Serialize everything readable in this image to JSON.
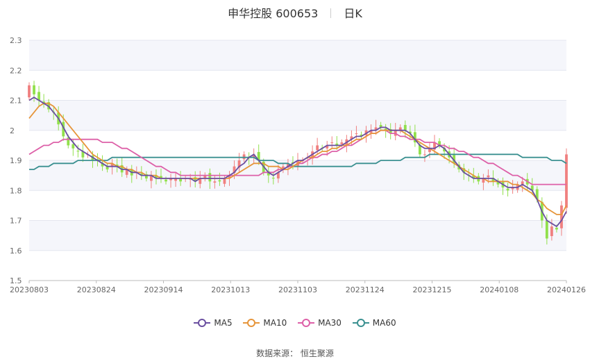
{
  "header": {
    "name": "申华控股 600653",
    "period": "日K"
  },
  "source_text": "数据来源： 恒生聚源",
  "colors": {
    "up": "#f08080",
    "down": "#91e04c",
    "ma5": "#6a4fa0",
    "ma10": "#e6953a",
    "ma30": "#dd60a8",
    "ma60": "#3a9090"
  },
  "chart_data": {
    "type": "candlestick",
    "ylim": [
      1.5,
      2.3
    ],
    "yticks": [
      "1.5",
      "1.6",
      "1.7",
      "1.8",
      "1.9",
      "2",
      "2.1",
      "2.2",
      "2.3"
    ],
    "xtick_labels": [
      "20230803",
      "20230824",
      "20230914",
      "20231013",
      "20231103",
      "20231124",
      "20231215",
      "20240108",
      "20240126"
    ],
    "legend": [
      "MA5",
      "MA10",
      "MA30",
      "MA60"
    ],
    "closes": [
      2.15,
      2.12,
      2.1,
      2.09,
      2.07,
      2.06,
      2.02,
      1.98,
      1.95,
      1.94,
      1.93,
      1.91,
      1.92,
      1.9,
      1.9,
      1.88,
      1.87,
      1.89,
      1.88,
      1.86,
      1.87,
      1.85,
      1.86,
      1.85,
      1.84,
      1.85,
      1.84,
      1.84,
      1.83,
      1.84,
      1.84,
      1.83,
      1.84,
      1.84,
      1.83,
      1.84,
      1.85,
      1.83,
      1.83,
      1.83,
      1.84,
      1.85,
      1.88,
      1.9,
      1.92,
      1.91,
      1.92,
      1.9,
      1.86,
      1.85,
      1.84,
      1.86,
      1.88,
      1.89,
      1.89,
      1.9,
      1.9,
      1.91,
      1.93,
      1.95,
      1.94,
      1.95,
      1.96,
      1.95,
      1.96,
      1.97,
      1.98,
      1.99,
      1.98,
      2.0,
      2.0,
      2.01,
      2.01,
      2.0,
      1.99,
      2.0,
      2.01,
      2.0,
      1.99,
      1.96,
      1.92,
      1.92,
      1.94,
      1.96,
      1.95,
      1.93,
      1.91,
      1.89,
      1.87,
      1.86,
      1.85,
      1.84,
      1.83,
      1.84,
      1.85,
      1.83,
      1.82,
      1.81,
      1.8,
      1.81,
      1.82,
      1.83,
      1.82,
      1.8,
      1.77,
      1.7,
      1.64,
      1.68,
      1.67,
      1.75,
      1.92
    ],
    "ma5": [
      2.1,
      2.11,
      2.1,
      2.09,
      2.08,
      2.06,
      2.04,
      2.01,
      1.98,
      1.96,
      1.94,
      1.93,
      1.92,
      1.91,
      1.9,
      1.89,
      1.88,
      1.88,
      1.88,
      1.87,
      1.87,
      1.86,
      1.86,
      1.85,
      1.85,
      1.85,
      1.84,
      1.84,
      1.84,
      1.84,
      1.84,
      1.84,
      1.84,
      1.84,
      1.83,
      1.84,
      1.84,
      1.84,
      1.84,
      1.84,
      1.84,
      1.85,
      1.86,
      1.88,
      1.89,
      1.91,
      1.92,
      1.9,
      1.88,
      1.86,
      1.85,
      1.86,
      1.87,
      1.88,
      1.89,
      1.9,
      1.9,
      1.91,
      1.92,
      1.93,
      1.94,
      1.95,
      1.95,
      1.95,
      1.95,
      1.96,
      1.97,
      1.98,
      1.98,
      1.99,
      2.0,
      2.0,
      2.01,
      2.01,
      2.0,
      2.0,
      2.0,
      2.0,
      1.99,
      1.97,
      1.95,
      1.94,
      1.94,
      1.94,
      1.95,
      1.94,
      1.92,
      1.9,
      1.88,
      1.86,
      1.85,
      1.84,
      1.84,
      1.84,
      1.84,
      1.84,
      1.83,
      1.82,
      1.81,
      1.81,
      1.81,
      1.82,
      1.81,
      1.8,
      1.77,
      1.73,
      1.7,
      1.69,
      1.68,
      1.7,
      1.73
    ],
    "ma10": [
      2.04,
      2.06,
      2.08,
      2.09,
      2.09,
      2.08,
      2.06,
      2.04,
      2.02,
      2.0,
      1.98,
      1.96,
      1.94,
      1.92,
      1.91,
      1.9,
      1.89,
      1.89,
      1.88,
      1.88,
      1.87,
      1.87,
      1.86,
      1.86,
      1.85,
      1.85,
      1.85,
      1.84,
      1.84,
      1.84,
      1.84,
      1.84,
      1.84,
      1.84,
      1.84,
      1.84,
      1.84,
      1.84,
      1.84,
      1.84,
      1.84,
      1.84,
      1.85,
      1.86,
      1.87,
      1.88,
      1.89,
      1.89,
      1.89,
      1.88,
      1.88,
      1.88,
      1.87,
      1.87,
      1.88,
      1.89,
      1.9,
      1.91,
      1.91,
      1.92,
      1.93,
      1.93,
      1.94,
      1.94,
      1.95,
      1.95,
      1.96,
      1.97,
      1.97,
      1.98,
      1.99,
      1.99,
      2.0,
      2.0,
      2.0,
      2.0,
      2.0,
      1.99,
      1.98,
      1.97,
      1.96,
      1.95,
      1.94,
      1.93,
      1.92,
      1.91,
      1.9,
      1.89,
      1.88,
      1.87,
      1.86,
      1.85,
      1.84,
      1.84,
      1.83,
      1.83,
      1.83,
      1.83,
      1.83,
      1.82,
      1.82,
      1.81,
      1.8,
      1.79,
      1.77,
      1.76,
      1.74,
      1.73,
      1.72,
      1.72,
      1.75
    ],
    "ma30": [
      1.92,
      1.93,
      1.94,
      1.95,
      1.95,
      1.96,
      1.96,
      1.97,
      1.97,
      1.97,
      1.97,
      1.97,
      1.97,
      1.97,
      1.97,
      1.96,
      1.96,
      1.96,
      1.95,
      1.94,
      1.94,
      1.93,
      1.92,
      1.91,
      1.9,
      1.89,
      1.88,
      1.88,
      1.87,
      1.86,
      1.86,
      1.85,
      1.85,
      1.85,
      1.85,
      1.85,
      1.85,
      1.85,
      1.85,
      1.85,
      1.85,
      1.85,
      1.85,
      1.85,
      1.85,
      1.85,
      1.85,
      1.85,
      1.86,
      1.86,
      1.86,
      1.87,
      1.87,
      1.88,
      1.88,
      1.89,
      1.89,
      1.9,
      1.91,
      1.91,
      1.92,
      1.92,
      1.93,
      1.93,
      1.94,
      1.95,
      1.95,
      1.96,
      1.97,
      1.98,
      1.99,
      1.99,
      2.0,
      2.0,
      1.99,
      1.99,
      1.98,
      1.98,
      1.97,
      1.97,
      1.97,
      1.96,
      1.96,
      1.96,
      1.95,
      1.95,
      1.94,
      1.94,
      1.93,
      1.93,
      1.92,
      1.91,
      1.91,
      1.9,
      1.89,
      1.89,
      1.88,
      1.87,
      1.86,
      1.85,
      1.85,
      1.84,
      1.83,
      1.82,
      1.82,
      1.82,
      1.82,
      1.82,
      1.82,
      1.82,
      1.82
    ],
    "ma60": [
      1.87,
      1.87,
      1.88,
      1.88,
      1.88,
      1.89,
      1.89,
      1.89,
      1.89,
      1.89,
      1.9,
      1.9,
      1.9,
      1.9,
      1.9,
      1.9,
      1.9,
      1.91,
      1.91,
      1.91,
      1.91,
      1.91,
      1.91,
      1.91,
      1.91,
      1.91,
      1.91,
      1.91,
      1.91,
      1.91,
      1.91,
      1.91,
      1.91,
      1.91,
      1.91,
      1.91,
      1.91,
      1.91,
      1.91,
      1.91,
      1.91,
      1.91,
      1.91,
      1.91,
      1.91,
      1.91,
      1.91,
      1.9,
      1.9,
      1.9,
      1.9,
      1.89,
      1.89,
      1.89,
      1.88,
      1.88,
      1.88,
      1.88,
      1.88,
      1.88,
      1.88,
      1.88,
      1.88,
      1.88,
      1.88,
      1.88,
      1.88,
      1.89,
      1.89,
      1.89,
      1.89,
      1.89,
      1.9,
      1.9,
      1.9,
      1.9,
      1.9,
      1.91,
      1.91,
      1.91,
      1.91,
      1.91,
      1.92,
      1.92,
      1.92,
      1.92,
      1.92,
      1.92,
      1.92,
      1.92,
      1.92,
      1.92,
      1.92,
      1.92,
      1.92,
      1.92,
      1.92,
      1.92,
      1.92,
      1.92,
      1.92,
      1.91,
      1.91,
      1.91,
      1.91,
      1.91,
      1.91,
      1.9,
      1.9,
      1.9,
      1.89
    ]
  }
}
